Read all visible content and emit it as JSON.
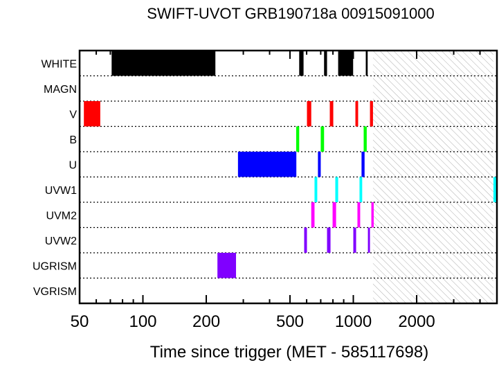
{
  "chart_data": {
    "type": "timeline",
    "title": "SWIFT-UVOT GRB190718a 00915091000",
    "xlabel": "Time since trigger (MET - 585117698)",
    "xscale": "log",
    "xlim": [
      50,
      4800
    ],
    "xticks": [
      50,
      100,
      200,
      500,
      1000,
      2000
    ],
    "xtick_labels": [
      "50",
      "100",
      "200",
      "500",
      "1000",
      "2000"
    ],
    "hatched_interval": [
      1240,
      4630
    ],
    "rows": [
      {
        "name": "WHITE",
        "color": "#000000",
        "intervals": [
          [
            71,
            221
          ],
          [
            553,
            580
          ],
          [
            726,
            750
          ],
          [
            847,
            998
          ],
          [
            1146,
            1170
          ]
        ]
      },
      {
        "name": "MAGN",
        "color": "#000000",
        "intervals": []
      },
      {
        "name": "V",
        "color": "#ff0000",
        "intervals": [
          [
            52.4,
            62.7
          ],
          [
            602,
            631
          ],
          [
            773,
            803
          ],
          [
            1023,
            1054
          ],
          [
            1200,
            1240
          ]
        ]
      },
      {
        "name": "B",
        "color": "#00ff00",
        "intervals": [
          [
            535,
            553
          ],
          [
            700,
            726
          ],
          [
            1120,
            1158
          ]
        ]
      },
      {
        "name": "U",
        "color": "#0000ff",
        "intervals": [
          [
            283,
            536
          ],
          [
            679,
            700
          ],
          [
            1094,
            1131
          ]
        ]
      },
      {
        "name": "UVW1",
        "color": "#00ffff",
        "intervals": [
          [
            654,
            674
          ],
          [
            821,
            847
          ],
          [
            1070,
            1102
          ],
          [
            4634,
            4870
          ]
        ]
      },
      {
        "name": "UVM2",
        "color": "#ff00ff",
        "intervals": [
          [
            631,
            654
          ],
          [
            797,
            828
          ],
          [
            1046,
            1078
          ],
          [
            1218,
            1250
          ]
        ]
      },
      {
        "name": "UVW2",
        "color": "#8000ff",
        "intervals": [
          [
            584,
            602
          ],
          [
            750,
            779
          ],
          [
            1000,
            1031
          ],
          [
            1173,
            1200
          ]
        ]
      },
      {
        "name": "UGRISM",
        "color": "#8000ff",
        "intervals": [
          [
            226,
            277
          ]
        ]
      },
      {
        "name": "VGRISM",
        "color": "#000000",
        "intervals": []
      }
    ]
  }
}
